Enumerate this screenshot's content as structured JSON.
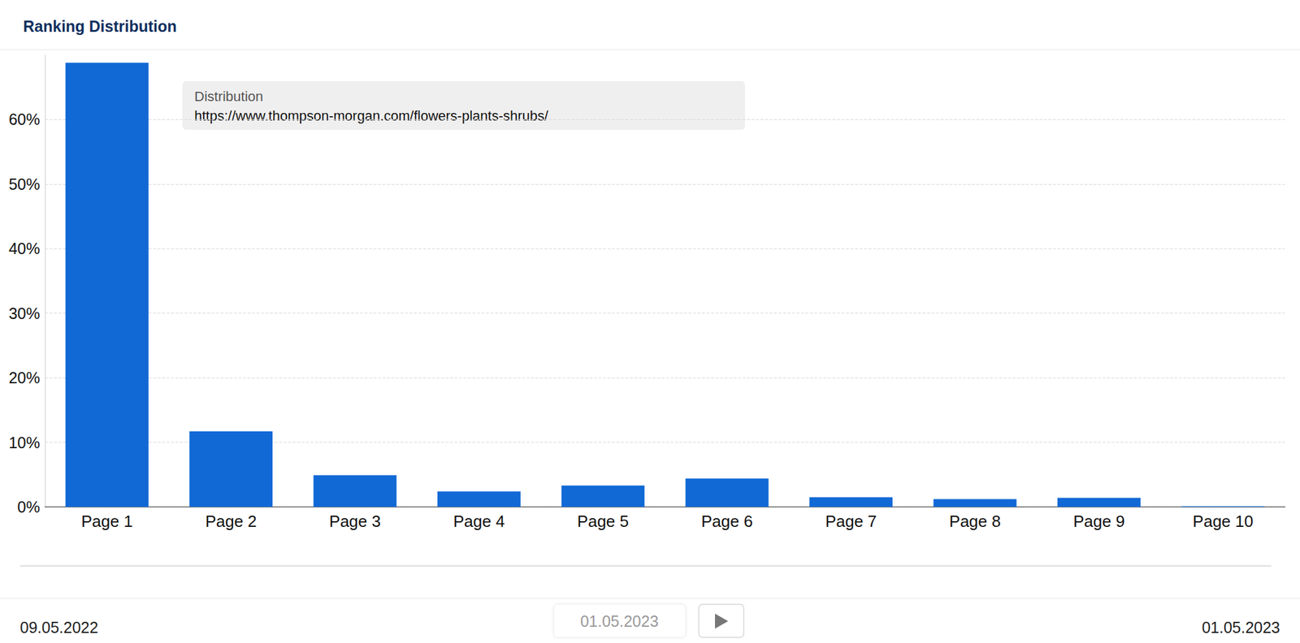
{
  "chart_data": {
    "type": "bar",
    "title": "Ranking Distribution",
    "categories": [
      "Page 1",
      "Page 2",
      "Page 3",
      "Page 4",
      "Page 5",
      "Page 6",
      "Page 7",
      "Page 8",
      "Page 9",
      "Page 10"
    ],
    "series": [
      {
        "name": "https://www.thompson-morgan.com/flowers-plants-shrubs/",
        "color": "#1169d6",
        "values": [
          68.8,
          11.7,
          4.9,
          2.4,
          3.3,
          4.4,
          1.5,
          1.2,
          1.4,
          0.1
        ]
      }
    ],
    "legend": "top-left",
    "legend_title": "Distribution",
    "ylim": [
      0,
      70
    ],
    "yticks": [
      {
        "value": 0,
        "label": "0%"
      },
      {
        "value": 10,
        "label": "10%"
      },
      {
        "value": 20,
        "label": "20%"
      },
      {
        "value": 30,
        "label": "30%"
      },
      {
        "value": 40,
        "label": "40%"
      },
      {
        "value": 50,
        "label": "50%"
      },
      {
        "value": 60,
        "label": "60%"
      }
    ],
    "grid": true,
    "timeline": {
      "start": "09.05.2022",
      "current": "01.05.2023",
      "end": "01.05.2023"
    }
  }
}
